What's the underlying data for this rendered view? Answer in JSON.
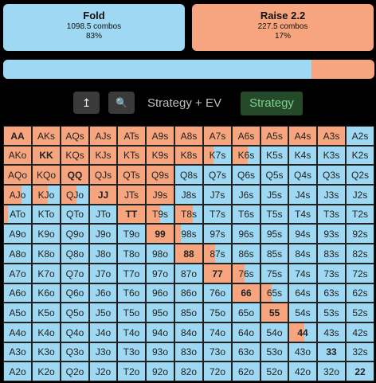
{
  "actions": {
    "fold": {
      "label": "Fold",
      "combos": "1098.5 combos",
      "percent": "83%"
    },
    "raise": {
      "label": "Raise 2.2",
      "combos": "227.5 combos",
      "percent": "17%"
    }
  },
  "frequency": {
    "fold_fraction": 0.83
  },
  "toolbar": {
    "collapse_icon": "↥",
    "zoom_icon": "🔍",
    "mode_ev": "Strategy + EV",
    "mode_strategy": "Strategy"
  },
  "colors": {
    "fold": "#9fd8f2",
    "raise": "#f7a57e",
    "active_mode": "#244a2a"
  },
  "grid": {
    "ranks": [
      "A",
      "K",
      "Q",
      "J",
      "T",
      "9",
      "8",
      "7",
      "6",
      "5",
      "4",
      "3",
      "2"
    ],
    "labels": [
      [
        "AA",
        "AKs",
        "AQs",
        "AJs",
        "ATs",
        "A9s",
        "A8s",
        "A7s",
        "A6s",
        "A5s",
        "A4s",
        "A3s",
        "A2s"
      ],
      [
        "AKo",
        "KK",
        "KQs",
        "KJs",
        "KTs",
        "K9s",
        "K8s",
        "K7s",
        "K6s",
        "K5s",
        "K4s",
        "K3s",
        "K2s"
      ],
      [
        "AQo",
        "KQo",
        "QQ",
        "QJs",
        "QTs",
        "Q9s",
        "Q8s",
        "Q7s",
        "Q6s",
        "Q5s",
        "Q4s",
        "Q3s",
        "Q2s"
      ],
      [
        "AJo",
        "KJo",
        "QJo",
        "JJ",
        "JTs",
        "J9s",
        "J8s",
        "J7s",
        "J6s",
        "J5s",
        "J4s",
        "J3s",
        "J2s"
      ],
      [
        "ATo",
        "KTo",
        "QTo",
        "JTo",
        "TT",
        "T9s",
        "T8s",
        "T7s",
        "T6s",
        "T5s",
        "T4s",
        "T3s",
        "T2s"
      ],
      [
        "A9o",
        "K9o",
        "Q9o",
        "J9o",
        "T9o",
        "99",
        "98s",
        "97s",
        "96s",
        "95s",
        "94s",
        "93s",
        "92s"
      ],
      [
        "A8o",
        "K8o",
        "Q8o",
        "J8o",
        "T8o",
        "98o",
        "88",
        "87s",
        "86s",
        "85s",
        "84s",
        "83s",
        "82s"
      ],
      [
        "A7o",
        "K7o",
        "Q7o",
        "J7o",
        "T7o",
        "97o",
        "87o",
        "77",
        "76s",
        "75s",
        "74s",
        "73s",
        "72s"
      ],
      [
        "A6o",
        "K6o",
        "Q6o",
        "J6o",
        "T6o",
        "96o",
        "86o",
        "76o",
        "66",
        "65s",
        "64s",
        "63s",
        "62s"
      ],
      [
        "A5o",
        "K5o",
        "Q5o",
        "J5o",
        "T5o",
        "95o",
        "85o",
        "75o",
        "65o",
        "55",
        "54s",
        "53s",
        "52s"
      ],
      [
        "A4o",
        "K4o",
        "Q4o",
        "J4o",
        "T4o",
        "94o",
        "84o",
        "74o",
        "64o",
        "54o",
        "44",
        "43s",
        "42s"
      ],
      [
        "A3o",
        "K3o",
        "Q3o",
        "J3o",
        "T3o",
        "93o",
        "83o",
        "73o",
        "63o",
        "53o",
        "43o",
        "33",
        "32s"
      ],
      [
        "A2o",
        "K2o",
        "Q2o",
        "J2o",
        "T2o",
        "92o",
        "82o",
        "72o",
        "62o",
        "52o",
        "42o",
        "32o",
        "22"
      ]
    ],
    "raise_freq": [
      [
        1,
        1,
        1,
        1,
        1,
        1,
        1,
        1,
        1,
        1,
        1,
        1,
        0
      ],
      [
        1,
        1,
        1,
        1,
        1,
        1,
        1,
        0.35,
        0.55,
        0,
        0,
        0,
        0
      ],
      [
        1,
        1,
        1,
        1,
        1,
        1,
        0,
        0,
        0,
        0,
        0,
        0,
        0
      ],
      [
        0.65,
        0.55,
        0.55,
        1,
        1,
        1,
        0,
        0,
        0,
        0,
        0,
        0,
        0
      ],
      [
        0.15,
        0,
        0,
        0,
        1,
        0.5,
        0.65,
        0,
        0,
        0,
        0,
        0,
        0
      ],
      [
        0,
        0,
        0,
        0,
        0,
        1,
        0.2,
        0,
        0,
        0,
        0,
        0,
        0
      ],
      [
        0,
        0,
        0,
        0,
        0,
        0,
        1,
        0.4,
        0,
        0,
        0,
        0,
        0
      ],
      [
        0,
        0,
        0,
        0,
        0,
        0,
        0,
        1,
        0.45,
        0,
        0,
        0,
        0
      ],
      [
        0,
        0,
        0,
        0,
        0,
        0,
        0,
        0,
        1,
        0.4,
        0,
        0,
        0
      ],
      [
        0,
        0,
        0,
        0,
        0,
        0,
        0,
        0,
        0,
        1,
        0,
        0,
        0
      ],
      [
        0,
        0,
        0,
        0,
        0,
        0,
        0,
        0,
        0,
        0,
        0.55,
        0,
        0
      ],
      [
        0,
        0,
        0,
        0,
        0,
        0,
        0,
        0,
        0,
        0,
        0,
        0,
        0
      ],
      [
        0,
        0,
        0,
        0,
        0,
        0,
        0,
        0,
        0,
        0,
        0,
        0,
        0
      ]
    ]
  }
}
